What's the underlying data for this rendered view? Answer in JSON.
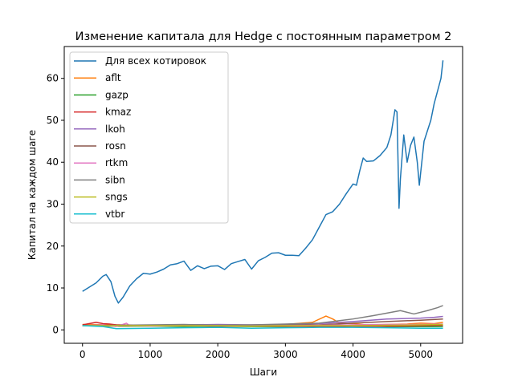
{
  "chart_data": {
    "type": "line",
    "title": "Изменение капитала для Hedge с постоянным параметром 2",
    "xlabel": "Шаги",
    "ylabel": "Капитал на каждом шаге",
    "xlim": [
      -270,
      5620
    ],
    "ylim": [
      -3.2,
      67.6
    ],
    "xticks": [
      0,
      1000,
      2000,
      3000,
      4000,
      5000
    ],
    "yticks": [
      0,
      10,
      20,
      30,
      40,
      50,
      60
    ],
    "grid": false,
    "legend_position": "top-left",
    "series": [
      {
        "name": "Для всех котировок",
        "color": "#1f77b4",
        "points": [
          [
            0,
            9.2
          ],
          [
            100,
            10.2
          ],
          [
            200,
            11.2
          ],
          [
            300,
            12.8
          ],
          [
            350,
            13.2
          ],
          [
            420,
            11.5
          ],
          [
            480,
            8
          ],
          [
            530,
            6.4
          ],
          [
            600,
            7.8
          ],
          [
            700,
            10.5
          ],
          [
            800,
            12.2
          ],
          [
            900,
            13.5
          ],
          [
            1000,
            13.3
          ],
          [
            1100,
            13.8
          ],
          [
            1200,
            14.5
          ],
          [
            1300,
            15.5
          ],
          [
            1400,
            15.8
          ],
          [
            1500,
            16.4
          ],
          [
            1600,
            14.2
          ],
          [
            1700,
            15.3
          ],
          [
            1800,
            14.6
          ],
          [
            1900,
            15.2
          ],
          [
            2000,
            15.3
          ],
          [
            2100,
            14.4
          ],
          [
            2200,
            15.8
          ],
          [
            2300,
            16.3
          ],
          [
            2400,
            16.8
          ],
          [
            2500,
            14.5
          ],
          [
            2600,
            16.5
          ],
          [
            2700,
            17.3
          ],
          [
            2800,
            18.3
          ],
          [
            2900,
            18.4
          ],
          [
            3000,
            17.8
          ],
          [
            3100,
            17.8
          ],
          [
            3200,
            17.7
          ],
          [
            3300,
            19.5
          ],
          [
            3400,
            21.5
          ],
          [
            3500,
            24.5
          ],
          [
            3600,
            27.5
          ],
          [
            3700,
            28.2
          ],
          [
            3800,
            30
          ],
          [
            3900,
            32.5
          ],
          [
            4000,
            34.8
          ],
          [
            4050,
            34.5
          ],
          [
            4100,
            38
          ],
          [
            4150,
            41
          ],
          [
            4200,
            40.2
          ],
          [
            4300,
            40.3
          ],
          [
            4400,
            41.6
          ],
          [
            4500,
            43.5
          ],
          [
            4560,
            46.5
          ],
          [
            4620,
            52.5
          ],
          [
            4650,
            52
          ],
          [
            4680,
            29
          ],
          [
            4700,
            36
          ],
          [
            4750,
            46.5
          ],
          [
            4800,
            40
          ],
          [
            4850,
            44
          ],
          [
            4900,
            46
          ],
          [
            4950,
            40
          ],
          [
            4980,
            34.5
          ],
          [
            5050,
            45
          ],
          [
            5100,
            47.5
          ],
          [
            5150,
            50
          ],
          [
            5200,
            54
          ],
          [
            5250,
            57
          ],
          [
            5300,
            60
          ],
          [
            5330,
            64.3
          ]
        ]
      },
      {
        "name": "aflt",
        "color": "#ff7f0e",
        "points": [
          [
            0,
            1.3
          ],
          [
            500,
            1.2
          ],
          [
            1000,
            1.1
          ],
          [
            1500,
            1.1
          ],
          [
            2000,
            1.0
          ],
          [
            2500,
            1.1
          ],
          [
            3000,
            1.3
          ],
          [
            3400,
            1.8
          ],
          [
            3600,
            3.3
          ],
          [
            3700,
            2.6
          ],
          [
            3800,
            1.6
          ],
          [
            4000,
            1.5
          ],
          [
            4200,
            1.2
          ],
          [
            4500,
            1.3
          ],
          [
            4800,
            1.4
          ],
          [
            5000,
            1.6
          ],
          [
            5200,
            1.5
          ],
          [
            5330,
            1.8
          ]
        ]
      },
      {
        "name": "gazp",
        "color": "#2ca02c",
        "points": [
          [
            0,
            1.0
          ],
          [
            500,
            0.9
          ],
          [
            1000,
            0.9
          ],
          [
            1500,
            0.8
          ],
          [
            2000,
            0.9
          ],
          [
            2500,
            0.8
          ],
          [
            3000,
            0.8
          ],
          [
            3500,
            0.9
          ],
          [
            4000,
            1.0
          ],
          [
            4500,
            0.8
          ],
          [
            5000,
            0.8
          ],
          [
            5330,
            0.8
          ]
        ]
      },
      {
        "name": "kmaz",
        "color": "#d62728",
        "points": [
          [
            0,
            1.2
          ],
          [
            200,
            1.8
          ],
          [
            300,
            1.5
          ],
          [
            400,
            1.4
          ],
          [
            500,
            1.2
          ],
          [
            1000,
            1.0
          ],
          [
            1500,
            1.0
          ],
          [
            2000,
            0.9
          ],
          [
            2500,
            0.9
          ],
          [
            3000,
            0.9
          ],
          [
            3500,
            0.8
          ],
          [
            4000,
            0.9
          ],
          [
            4500,
            0.9
          ],
          [
            5000,
            1.0
          ],
          [
            5330,
            1.1
          ]
        ]
      },
      {
        "name": "lkoh",
        "color": "#9467bd",
        "points": [
          [
            0,
            1.0
          ],
          [
            500,
            1.0
          ],
          [
            1000,
            1.1
          ],
          [
            1500,
            1.2
          ],
          [
            2000,
            1.3
          ],
          [
            2500,
            1.2
          ],
          [
            3000,
            1.3
          ],
          [
            3500,
            1.5
          ],
          [
            4000,
            2.0
          ],
          [
            4500,
            2.6
          ],
          [
            5000,
            2.8
          ],
          [
            5200,
            3.0
          ],
          [
            5330,
            3.2
          ]
        ]
      },
      {
        "name": "rosn",
        "color": "#8c564b",
        "points": [
          [
            0,
            1.0
          ],
          [
            500,
            0.9
          ],
          [
            1000,
            1.0
          ],
          [
            1500,
            1.0
          ],
          [
            2000,
            0.9
          ],
          [
            2500,
            1.0
          ],
          [
            3000,
            1.1
          ],
          [
            3500,
            1.2
          ],
          [
            4000,
            1.6
          ],
          [
            4500,
            2.0
          ],
          [
            5000,
            2.3
          ],
          [
            5330,
            2.6
          ]
        ]
      },
      {
        "name": "rtkm",
        "color": "#e377c2",
        "points": [
          [
            0,
            1.0
          ],
          [
            300,
            1.2
          ],
          [
            500,
            0.8
          ],
          [
            650,
            1.6
          ],
          [
            700,
            1.0
          ],
          [
            1000,
            0.9
          ],
          [
            1500,
            1.0
          ],
          [
            2000,
            1.0
          ],
          [
            2500,
            1.0
          ],
          [
            3000,
            1.0
          ],
          [
            3500,
            1.1
          ],
          [
            4000,
            1.2
          ],
          [
            4500,
            1.3
          ],
          [
            5000,
            1.3
          ],
          [
            5330,
            1.4
          ]
        ]
      },
      {
        "name": "sibn",
        "color": "#7f7f7f",
        "points": [
          [
            0,
            1.0
          ],
          [
            500,
            1.1
          ],
          [
            1000,
            1.2
          ],
          [
            1500,
            1.3
          ],
          [
            2000,
            1.1
          ],
          [
            2500,
            1.2
          ],
          [
            3000,
            1.4
          ],
          [
            3500,
            1.6
          ],
          [
            3800,
            2.2
          ],
          [
            4000,
            2.6
          ],
          [
            4300,
            3.4
          ],
          [
            4500,
            4.0
          ],
          [
            4700,
            4.6
          ],
          [
            4900,
            3.8
          ],
          [
            5100,
            4.6
          ],
          [
            5250,
            5.3
          ],
          [
            5330,
            5.8
          ]
        ]
      },
      {
        "name": "sngs",
        "color": "#bcbd22",
        "points": [
          [
            0,
            1.0
          ],
          [
            500,
            1.0
          ],
          [
            1000,
            1.0
          ],
          [
            1500,
            1.0
          ],
          [
            2000,
            1.0
          ],
          [
            2500,
            0.9
          ],
          [
            3000,
            1.0
          ],
          [
            3500,
            1.0
          ],
          [
            4000,
            1.0
          ],
          [
            4500,
            1.1
          ],
          [
            5000,
            1.2
          ],
          [
            5330,
            1.3
          ]
        ]
      },
      {
        "name": "vtbr",
        "color": "#17becf",
        "points": [
          [
            0,
            1.0
          ],
          [
            300,
            0.8
          ],
          [
            500,
            0.3
          ],
          [
            1000,
            0.4
          ],
          [
            1500,
            0.5
          ],
          [
            2000,
            0.6
          ],
          [
            2500,
            0.4
          ],
          [
            3000,
            0.5
          ],
          [
            3500,
            0.6
          ],
          [
            4000,
            0.6
          ],
          [
            4500,
            0.5
          ],
          [
            5000,
            0.4
          ],
          [
            5330,
            0.4
          ]
        ]
      }
    ]
  }
}
